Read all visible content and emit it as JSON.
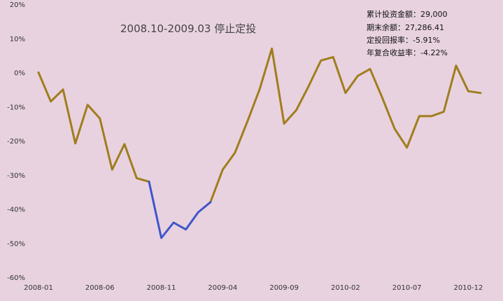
{
  "chart_data": {
    "type": "line",
    "title": "",
    "xlabel": "",
    "ylabel": "",
    "ylim": [
      -60,
      20
    ],
    "y_ticks": [
      20,
      10,
      0,
      -10,
      -20,
      -30,
      -40,
      -50,
      -60
    ],
    "y_tick_labels": [
      "20%",
      "10%",
      "0%",
      "-10%",
      "-20%",
      "-30%",
      "-40%",
      "-50%",
      "-60%"
    ],
    "x_tick_labels": [
      "2008-01",
      "2008-06",
      "2008-11",
      "2009-04",
      "2009-09",
      "2010-02",
      "2010-07",
      "2010-12"
    ],
    "grid": false,
    "x": [
      "2008-01",
      "2008-02",
      "2008-03",
      "2008-04",
      "2008-05",
      "2008-06",
      "2008-07",
      "2008-08",
      "2008-09",
      "2008-10",
      "2008-11",
      "2008-12",
      "2009-01",
      "2009-02",
      "2009-03",
      "2009-04",
      "2009-05",
      "2009-06",
      "2009-07",
      "2009-08",
      "2009-09",
      "2009-10",
      "2009-11",
      "2009-12",
      "2010-01",
      "2010-02",
      "2010-03",
      "2010-04",
      "2010-05",
      "2010-06",
      "2010-07",
      "2010-08",
      "2010-09",
      "2010-10",
      "2010-11",
      "2010-12",
      "2011-01"
    ],
    "series": [
      {
        "values": [
          0,
          -8.5,
          -5,
          -20.8,
          -9.5,
          -13.5,
          -28.5,
          -21,
          -31,
          -32,
          -48.5,
          -44,
          -46,
          -41,
          -38,
          -28.5,
          -23.5,
          -14.5,
          -5,
          7,
          -15,
          -11,
          -4,
          3.5,
          4.5,
          -6,
          -1,
          1,
          -7.5,
          -16.5,
          -22,
          -12.8,
          -12.8,
          -11.5,
          2,
          -5.5,
          -6
        ],
        "color_default": "#a07d1c",
        "color_highlight": "#3f56c9",
        "highlight_range": [
          "2008-10",
          "2009-03"
        ]
      }
    ],
    "annotations": {
      "title_text": "2008.10-2009.03 停止定投",
      "stats": [
        "累计投资金额：29,000",
        "期末余额：27,286.41",
        "定投回报率：-5.91%",
        "年复合收益率：-4.22%"
      ]
    }
  }
}
